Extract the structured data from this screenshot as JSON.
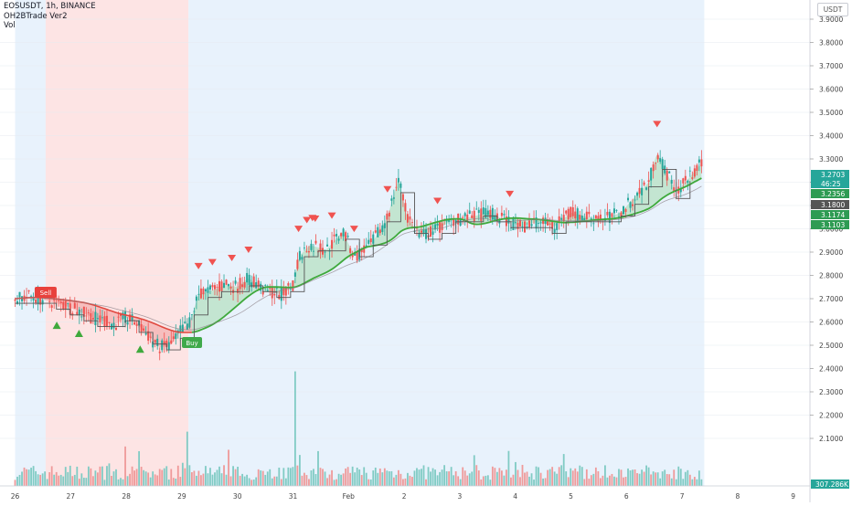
{
  "legend": {
    "symbol": "EOSUSDT, 1h, BINANCE",
    "indicator": "OH2BTrade Ver2",
    "volume": "Vol"
  },
  "currency_label": "USDT",
  "colors": {
    "bg_blue": "#e8f2fc",
    "bg_red": "#fde4e4",
    "up": "#26a69a",
    "down": "#ef5350",
    "vol_up": "#80cbc4",
    "vol_down": "#ef9a9a",
    "ma_green": "#3fa93c",
    "ma_red": "#e0483f",
    "step_line": "#555555",
    "fill_green": "#b7e0c3",
    "fill_red": "#f4b4b4",
    "fill_orange": "#f7c9a8"
  },
  "chart_data": {
    "type": "candlestick",
    "symbol": "EOSUSDT",
    "interval": "1h",
    "exchange": "BINANCE",
    "y_ticks": [
      "2.1000",
      "2.2000",
      "2.3000",
      "2.4000",
      "2.5000",
      "2.6000",
      "2.7000",
      "2.8000",
      "2.9000",
      "3.0000",
      "3.1000",
      "3.2000",
      "3.3000",
      "3.4000",
      "3.5000",
      "3.6000",
      "3.7000",
      "3.8000",
      "3.9000"
    ],
    "ylim": [
      2.02,
      3.98
    ],
    "x_ticks": [
      "26",
      "27",
      "28",
      "29",
      "30",
      "31",
      "Feb",
      "2",
      "3",
      "4",
      "5",
      "6",
      "7",
      "8",
      "9"
    ],
    "x_range_days": [
      0,
      14.6
    ],
    "price_path": [
      [
        0.0,
        2.7
      ],
      [
        0.3,
        2.71
      ],
      [
        0.6,
        2.69
      ],
      [
        0.9,
        2.67
      ],
      [
        1.2,
        2.64
      ],
      [
        1.5,
        2.61
      ],
      [
        1.8,
        2.59
      ],
      [
        2.0,
        2.62
      ],
      [
        2.2,
        2.59
      ],
      [
        2.4,
        2.54
      ],
      [
        2.6,
        2.49
      ],
      [
        2.8,
        2.5
      ],
      [
        3.0,
        2.57
      ],
      [
        3.15,
        2.6
      ],
      [
        3.3,
        2.72
      ],
      [
        3.6,
        2.74
      ],
      [
        3.8,
        2.76
      ],
      [
        4.0,
        2.75
      ],
      [
        4.2,
        2.79
      ],
      [
        4.5,
        2.73
      ],
      [
        4.8,
        2.72
      ],
      [
        5.0,
        2.75
      ],
      [
        5.1,
        2.88
      ],
      [
        5.3,
        2.93
      ],
      [
        5.6,
        2.91
      ],
      [
        5.9,
        2.99
      ],
      [
        6.1,
        2.88
      ],
      [
        6.4,
        2.93
      ],
      [
        6.7,
        3.05
      ],
      [
        6.9,
        3.22
      ],
      [
        7.05,
        3.05
      ],
      [
        7.3,
        2.97
      ],
      [
        7.6,
        3.0
      ],
      [
        7.9,
        3.04
      ],
      [
        8.2,
        3.05
      ],
      [
        8.5,
        3.07
      ],
      [
        8.8,
        3.04
      ],
      [
        9.1,
        3.01
      ],
      [
        9.4,
        3.03
      ],
      [
        9.7,
        3.01
      ],
      [
        10.0,
        3.07
      ],
      [
        10.3,
        3.05
      ],
      [
        10.6,
        3.04
      ],
      [
        10.9,
        3.07
      ],
      [
        11.2,
        3.15
      ],
      [
        11.4,
        3.2
      ],
      [
        11.55,
        3.33
      ],
      [
        11.7,
        3.25
      ],
      [
        11.9,
        3.16
      ],
      [
        12.1,
        3.21
      ],
      [
        12.3,
        3.27
      ]
    ],
    "volume_scale": [
      0,
      0.4
    ],
    "last_values": {
      "price": "3.2703",
      "countdown": "46:25",
      "line_1": "3.2356",
      "line_2": "3.1800",
      "line_3": "3.1174",
      "line_4": "3.1103",
      "volume": "307.286K"
    },
    "signals": {
      "sell_label": "Sell",
      "buy_label": "Buy",
      "sell_at_day": 0.55,
      "buy_at_day": 3.15
    },
    "regions": [
      {
        "type": "blue",
        "from": 0.0,
        "to": 0.55
      },
      {
        "type": "red",
        "from": 0.55,
        "to": 3.12
      },
      {
        "type": "blue",
        "from": 3.12,
        "to": 12.4
      }
    ],
    "markers_down": [
      3.3,
      3.55,
      3.9,
      4.2,
      5.1,
      5.25,
      5.35,
      5.4,
      5.7,
      6.1,
      6.7,
      7.6,
      8.9,
      11.55
    ],
    "markers_up": [
      0.75,
      1.15,
      2.25
    ],
    "grid": true
  }
}
